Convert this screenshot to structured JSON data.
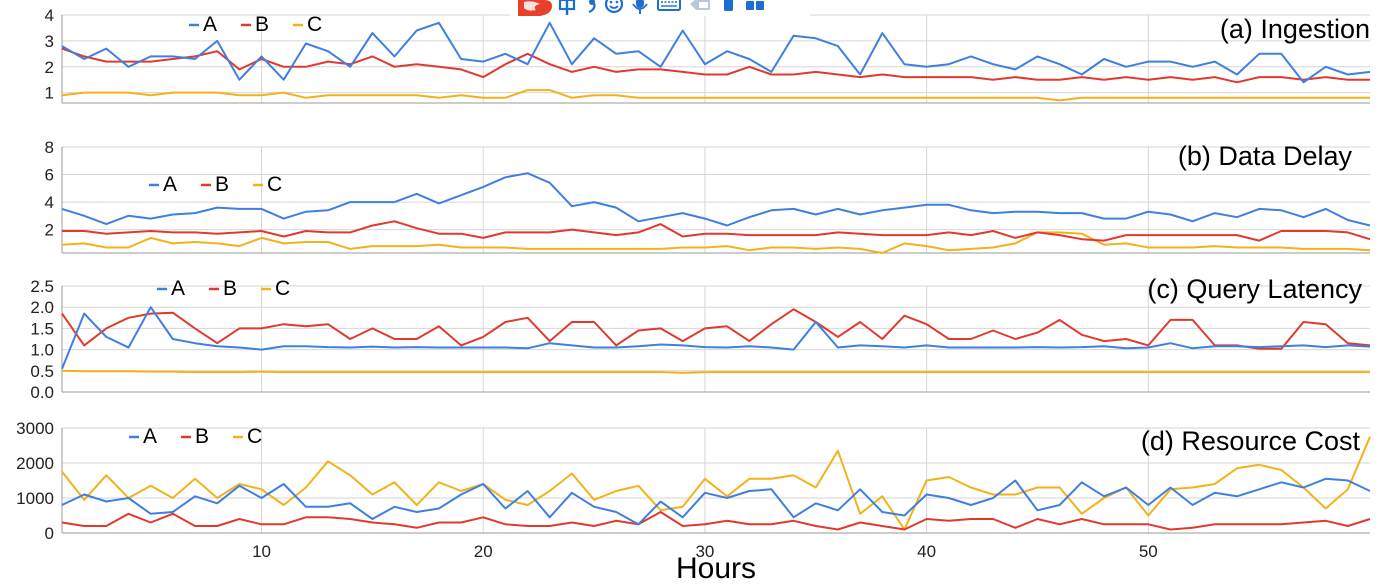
{
  "xlabel": "Hours",
  "colors": {
    "A": "#3f7fe0",
    "B": "#e03a2e",
    "C": "#f2b21b",
    "grid": "#d6d6d6"
  },
  "chart_data": [
    {
      "type": "line",
      "title": "(a) Ingestion",
      "xlabel": "Hours",
      "ylabel": "",
      "ylim": [
        0.6,
        4
      ],
      "xlim": [
        1,
        60
      ],
      "xticks": [
        10,
        20,
        30,
        40,
        50
      ],
      "yticks": [
        1,
        2,
        3,
        4
      ],
      "ytick_labels": [
        "1",
        "2",
        "3",
        "4"
      ],
      "grid": true,
      "legend": {
        "placement": "top-left",
        "entries": [
          "A",
          "B",
          "C"
        ]
      },
      "x": [
        1,
        2,
        3,
        4,
        5,
        6,
        7,
        8,
        9,
        10,
        11,
        12,
        13,
        14,
        15,
        16,
        17,
        18,
        19,
        20,
        21,
        22,
        23,
        24,
        25,
        26,
        27,
        28,
        29,
        30,
        31,
        32,
        33,
        34,
        35,
        36,
        37,
        38,
        39,
        40,
        41,
        42,
        43,
        44,
        45,
        46,
        47,
        48,
        49,
        50,
        51,
        52,
        53,
        54,
        55,
        56,
        57,
        58,
        59,
        60
      ],
      "series": [
        {
          "name": "A",
          "color": "A",
          "values": [
            2.8,
            2.3,
            2.7,
            2.0,
            2.4,
            2.4,
            2.3,
            3.0,
            1.5,
            2.4,
            1.5,
            2.9,
            2.6,
            2.0,
            3.3,
            2.4,
            3.4,
            3.7,
            2.3,
            2.2,
            2.5,
            2.1,
            3.7,
            2.1,
            3.1,
            2.5,
            2.6,
            2.0,
            3.4,
            2.1,
            2.6,
            2.3,
            1.8,
            3.2,
            3.1,
            2.8,
            1.7,
            3.3,
            2.1,
            2.0,
            2.1,
            2.4,
            2.1,
            1.9,
            2.4,
            2.1,
            1.7,
            2.3,
            2.0,
            2.2,
            2.2,
            2.0,
            2.2,
            1.7,
            2.5,
            2.5,
            1.4,
            2.0,
            1.7,
            1.8
          ]
        },
        {
          "name": "B",
          "color": "B",
          "values": [
            2.7,
            2.4,
            2.2,
            2.2,
            2.2,
            2.3,
            2.4,
            2.6,
            1.9,
            2.3,
            2.0,
            2.0,
            2.2,
            2.1,
            2.4,
            2.0,
            2.1,
            2.0,
            1.9,
            1.6,
            2.1,
            2.5,
            2.1,
            1.8,
            2.0,
            1.8,
            1.9,
            1.9,
            1.8,
            1.7,
            1.7,
            2.0,
            1.7,
            1.7,
            1.8,
            1.7,
            1.6,
            1.7,
            1.6,
            1.6,
            1.6,
            1.6,
            1.5,
            1.6,
            1.5,
            1.5,
            1.6,
            1.5,
            1.6,
            1.5,
            1.6,
            1.5,
            1.6,
            1.4,
            1.6,
            1.6,
            1.5,
            1.6,
            1.5,
            1.5
          ]
        },
        {
          "name": "C",
          "color": "C",
          "values": [
            0.9,
            1.0,
            1.0,
            1.0,
            0.9,
            1.0,
            1.0,
            1.0,
            0.9,
            0.9,
            1.0,
            0.8,
            0.9,
            0.9,
            0.9,
            0.9,
            0.9,
            0.8,
            0.9,
            0.8,
            0.8,
            1.1,
            1.1,
            0.8,
            0.9,
            0.9,
            0.8,
            0.8,
            0.8,
            0.8,
            0.8,
            0.8,
            0.8,
            0.8,
            0.8,
            0.8,
            0.8,
            0.8,
            0.8,
            0.8,
            0.8,
            0.8,
            0.8,
            0.8,
            0.8,
            0.7,
            0.8,
            0.8,
            0.8,
            0.8,
            0.8,
            0.8,
            0.8,
            0.8,
            0.8,
            0.8,
            0.8,
            0.8,
            0.8,
            0.8
          ]
        }
      ]
    },
    {
      "type": "line",
      "title": "(b) Data Delay",
      "xlabel": "",
      "ylabel": "",
      "ylim": [
        0.3,
        8
      ],
      "xlim": [
        1,
        60
      ],
      "xticks": [
        10,
        20,
        30,
        40,
        50
      ],
      "yticks": [
        2,
        4,
        6,
        8
      ],
      "ytick_labels": [
        "2",
        "4",
        "6",
        "8"
      ],
      "grid": true,
      "legend": {
        "placement": "top-left",
        "entries": [
          "A",
          "B",
          "C"
        ]
      },
      "x": [
        1,
        2,
        3,
        4,
        5,
        6,
        7,
        8,
        9,
        10,
        11,
        12,
        13,
        14,
        15,
        16,
        17,
        18,
        19,
        20,
        21,
        22,
        23,
        24,
        25,
        26,
        27,
        28,
        29,
        30,
        31,
        32,
        33,
        34,
        35,
        36,
        37,
        38,
        39,
        40,
        41,
        42,
        43,
        44,
        45,
        46,
        47,
        48,
        49,
        50,
        51,
        52,
        53,
        54,
        55,
        56,
        57,
        58,
        59,
        60
      ],
      "series": [
        {
          "name": "A",
          "color": "A",
          "values": [
            3.5,
            3.0,
            2.4,
            3.0,
            2.8,
            3.1,
            3.2,
            3.6,
            3.5,
            3.5,
            2.8,
            3.3,
            3.4,
            4.0,
            4.0,
            4.0,
            4.6,
            3.9,
            4.5,
            5.1,
            5.8,
            6.1,
            5.4,
            3.7,
            4.0,
            3.6,
            2.6,
            2.9,
            3.2,
            2.8,
            2.3,
            2.9,
            3.4,
            3.5,
            3.1,
            3.5,
            3.1,
            3.4,
            3.6,
            3.8,
            3.8,
            3.4,
            3.2,
            3.3,
            3.3,
            3.2,
            3.2,
            2.8,
            2.8,
            3.3,
            3.1,
            2.6,
            3.2,
            2.9,
            3.5,
            3.4,
            2.9,
            3.5,
            2.7,
            2.3
          ]
        },
        {
          "name": "B",
          "color": "B",
          "values": [
            1.9,
            1.9,
            1.7,
            1.8,
            1.9,
            1.8,
            1.8,
            1.7,
            1.8,
            1.9,
            1.5,
            1.9,
            1.8,
            1.8,
            2.3,
            2.6,
            2.1,
            1.7,
            1.7,
            1.4,
            1.8,
            1.8,
            1.8,
            2.0,
            1.8,
            1.6,
            1.8,
            2.4,
            1.5,
            1.7,
            1.7,
            1.6,
            1.6,
            1.6,
            1.6,
            1.8,
            1.7,
            1.6,
            1.6,
            1.6,
            1.8,
            1.6,
            1.9,
            1.4,
            1.8,
            1.6,
            1.3,
            1.2,
            1.6,
            1.6,
            1.6,
            1.6,
            1.6,
            1.6,
            1.2,
            1.9,
            1.9,
            1.9,
            1.8,
            1.3
          ]
        },
        {
          "name": "C",
          "color": "C",
          "values": [
            0.9,
            1.0,
            0.7,
            0.7,
            1.4,
            1.0,
            1.1,
            1.0,
            0.8,
            1.4,
            1.0,
            1.1,
            1.1,
            0.6,
            0.8,
            0.8,
            0.8,
            0.9,
            0.7,
            0.7,
            0.7,
            0.6,
            0.6,
            0.6,
            0.6,
            0.6,
            0.6,
            0.6,
            0.7,
            0.7,
            0.8,
            0.5,
            0.7,
            0.7,
            0.6,
            0.7,
            0.6,
            0.2,
            1.0,
            0.8,
            0.5,
            0.6,
            0.7,
            1.0,
            1.8,
            1.8,
            1.7,
            0.9,
            1.0,
            0.7,
            0.7,
            0.7,
            0.8,
            0.7,
            0.7,
            0.7,
            0.6,
            0.6,
            0.6,
            0.5
          ]
        }
      ]
    },
    {
      "type": "line",
      "title": "(c) Query Latency",
      "xlabel": "",
      "ylabel": "",
      "ylim": [
        0,
        2.5
      ],
      "xlim": [
        1,
        60
      ],
      "xticks": [
        10,
        20,
        30,
        40,
        50
      ],
      "yticks": [
        0,
        0.5,
        1.0,
        1.5,
        2.0,
        2.5
      ],
      "ytick_labels": [
        "0.0",
        "0.5",
        "1.0",
        "1.5",
        "2.0",
        "2.5"
      ],
      "grid": true,
      "legend": {
        "placement": "top-left",
        "entries": [
          "A",
          "B",
          "C"
        ]
      },
      "x": [
        1,
        2,
        3,
        4,
        5,
        6,
        7,
        8,
        9,
        10,
        11,
        12,
        13,
        14,
        15,
        16,
        17,
        18,
        19,
        20,
        21,
        22,
        23,
        24,
        25,
        26,
        27,
        28,
        29,
        30,
        31,
        32,
        33,
        34,
        35,
        36,
        37,
        38,
        39,
        40,
        41,
        42,
        43,
        44,
        45,
        46,
        47,
        48,
        49,
        50,
        51,
        52,
        53,
        54,
        55,
        56,
        57,
        58,
        59,
        60
      ],
      "series": [
        {
          "name": "A",
          "color": "A",
          "values": [
            0.55,
            1.85,
            1.3,
            1.05,
            2.0,
            1.25,
            1.15,
            1.08,
            1.05,
            1.0,
            1.08,
            1.08,
            1.06,
            1.05,
            1.07,
            1.05,
            1.06,
            1.05,
            1.05,
            1.05,
            1.05,
            1.03,
            1.15,
            1.1,
            1.05,
            1.05,
            1.08,
            1.12,
            1.1,
            1.06,
            1.05,
            1.08,
            1.05,
            1.0,
            1.65,
            1.05,
            1.1,
            1.08,
            1.05,
            1.1,
            1.05,
            1.05,
            1.05,
            1.05,
            1.06,
            1.05,
            1.06,
            1.08,
            1.03,
            1.05,
            1.15,
            1.03,
            1.08,
            1.08,
            1.06,
            1.08,
            1.1,
            1.06,
            1.1,
            1.07
          ]
        },
        {
          "name": "B",
          "color": "B",
          "values": [
            1.85,
            1.1,
            1.5,
            1.75,
            1.85,
            1.87,
            1.5,
            1.15,
            1.5,
            1.5,
            1.6,
            1.55,
            1.6,
            1.25,
            1.5,
            1.25,
            1.25,
            1.55,
            1.1,
            1.3,
            1.65,
            1.75,
            1.2,
            1.65,
            1.65,
            1.1,
            1.45,
            1.5,
            1.2,
            1.5,
            1.55,
            1.2,
            1.6,
            1.95,
            1.65,
            1.3,
            1.65,
            1.25,
            1.8,
            1.6,
            1.25,
            1.25,
            1.45,
            1.25,
            1.4,
            1.7,
            1.35,
            1.2,
            1.25,
            1.1,
            1.7,
            1.7,
            1.1,
            1.1,
            1.02,
            1.02,
            1.65,
            1.6,
            1.15,
            1.1
          ]
        },
        {
          "name": "C",
          "color": "C",
          "values": [
            0.5,
            0.49,
            0.49,
            0.49,
            0.48,
            0.48,
            0.47,
            0.47,
            0.47,
            0.48,
            0.47,
            0.47,
            0.47,
            0.47,
            0.47,
            0.47,
            0.47,
            0.47,
            0.47,
            0.47,
            0.47,
            0.47,
            0.47,
            0.47,
            0.47,
            0.47,
            0.47,
            0.47,
            0.45,
            0.47,
            0.47,
            0.47,
            0.47,
            0.47,
            0.47,
            0.47,
            0.47,
            0.47,
            0.47,
            0.47,
            0.47,
            0.47,
            0.47,
            0.47,
            0.47,
            0.47,
            0.47,
            0.47,
            0.47,
            0.47,
            0.47,
            0.47,
            0.47,
            0.47,
            0.47,
            0.47,
            0.47,
            0.47,
            0.47,
            0.47
          ]
        }
      ]
    },
    {
      "type": "line",
      "title": "(d) Resource Cost",
      "xlabel": "Hours",
      "ylabel": "",
      "ylim": [
        0,
        3000
      ],
      "xlim": [
        1,
        60
      ],
      "xticks": [
        10,
        20,
        30,
        40,
        50
      ],
      "yticks": [
        0,
        1000,
        2000,
        3000
      ],
      "ytick_labels": [
        "0",
        "1000",
        "2000",
        "3000"
      ],
      "grid": true,
      "legend": {
        "placement": "top-left",
        "entries": [
          "A",
          "B",
          "C"
        ]
      },
      "x": [
        1,
        2,
        3,
        4,
        5,
        6,
        7,
        8,
        9,
        10,
        11,
        12,
        13,
        14,
        15,
        16,
        17,
        18,
        19,
        20,
        21,
        22,
        23,
        24,
        25,
        26,
        27,
        28,
        29,
        30,
        31,
        32,
        33,
        34,
        35,
        36,
        37,
        38,
        39,
        40,
        41,
        42,
        43,
        44,
        45,
        46,
        47,
        48,
        49,
        50,
        51,
        52,
        53,
        54,
        55,
        56,
        57,
        58,
        59,
        60
      ],
      "series": [
        {
          "name": "A",
          "color": "A",
          "values": [
            800,
            1100,
            900,
            1000,
            550,
            600,
            1050,
            850,
            1350,
            1000,
            1400,
            750,
            750,
            850,
            400,
            750,
            600,
            700,
            1100,
            1400,
            700,
            1200,
            450,
            1150,
            750,
            600,
            250,
            900,
            450,
            1150,
            1000,
            1200,
            1250,
            450,
            850,
            650,
            1250,
            600,
            500,
            1100,
            1000,
            800,
            1000,
            1500,
            650,
            800,
            1450,
            1050,
            1300,
            800,
            1300,
            800,
            1150,
            1050,
            1250,
            1450,
            1300,
            1550,
            1500,
            1200
          ]
        },
        {
          "name": "B",
          "color": "B",
          "values": [
            300,
            200,
            200,
            550,
            300,
            550,
            200,
            200,
            400,
            250,
            250,
            450,
            450,
            400,
            300,
            250,
            150,
            300,
            300,
            450,
            250,
            200,
            200,
            300,
            200,
            350,
            250,
            600,
            200,
            250,
            350,
            250,
            250,
            350,
            200,
            100,
            300,
            200,
            100,
            400,
            350,
            400,
            400,
            150,
            400,
            250,
            400,
            250,
            250,
            250,
            100,
            150,
            250,
            250,
            250,
            250,
            300,
            350,
            200,
            400
          ]
        },
        {
          "name": "C",
          "color": "C",
          "values": [
            1750,
            950,
            1650,
            1000,
            1350,
            1000,
            1550,
            1000,
            1400,
            1250,
            800,
            1300,
            2050,
            1650,
            1100,
            1450,
            800,
            1450,
            1200,
            1400,
            950,
            800,
            1200,
            1700,
            950,
            1200,
            1350,
            650,
            750,
            1550,
            1050,
            1550,
            1550,
            1650,
            1300,
            2350,
            550,
            1050,
            100,
            1500,
            1600,
            1300,
            1100,
            1100,
            1300,
            1300,
            550,
            1000,
            1300,
            500,
            1250,
            1300,
            1400,
            1850,
            1950,
            1800,
            1300,
            700,
            1250,
            2750
          ]
        }
      ]
    }
  ]
}
